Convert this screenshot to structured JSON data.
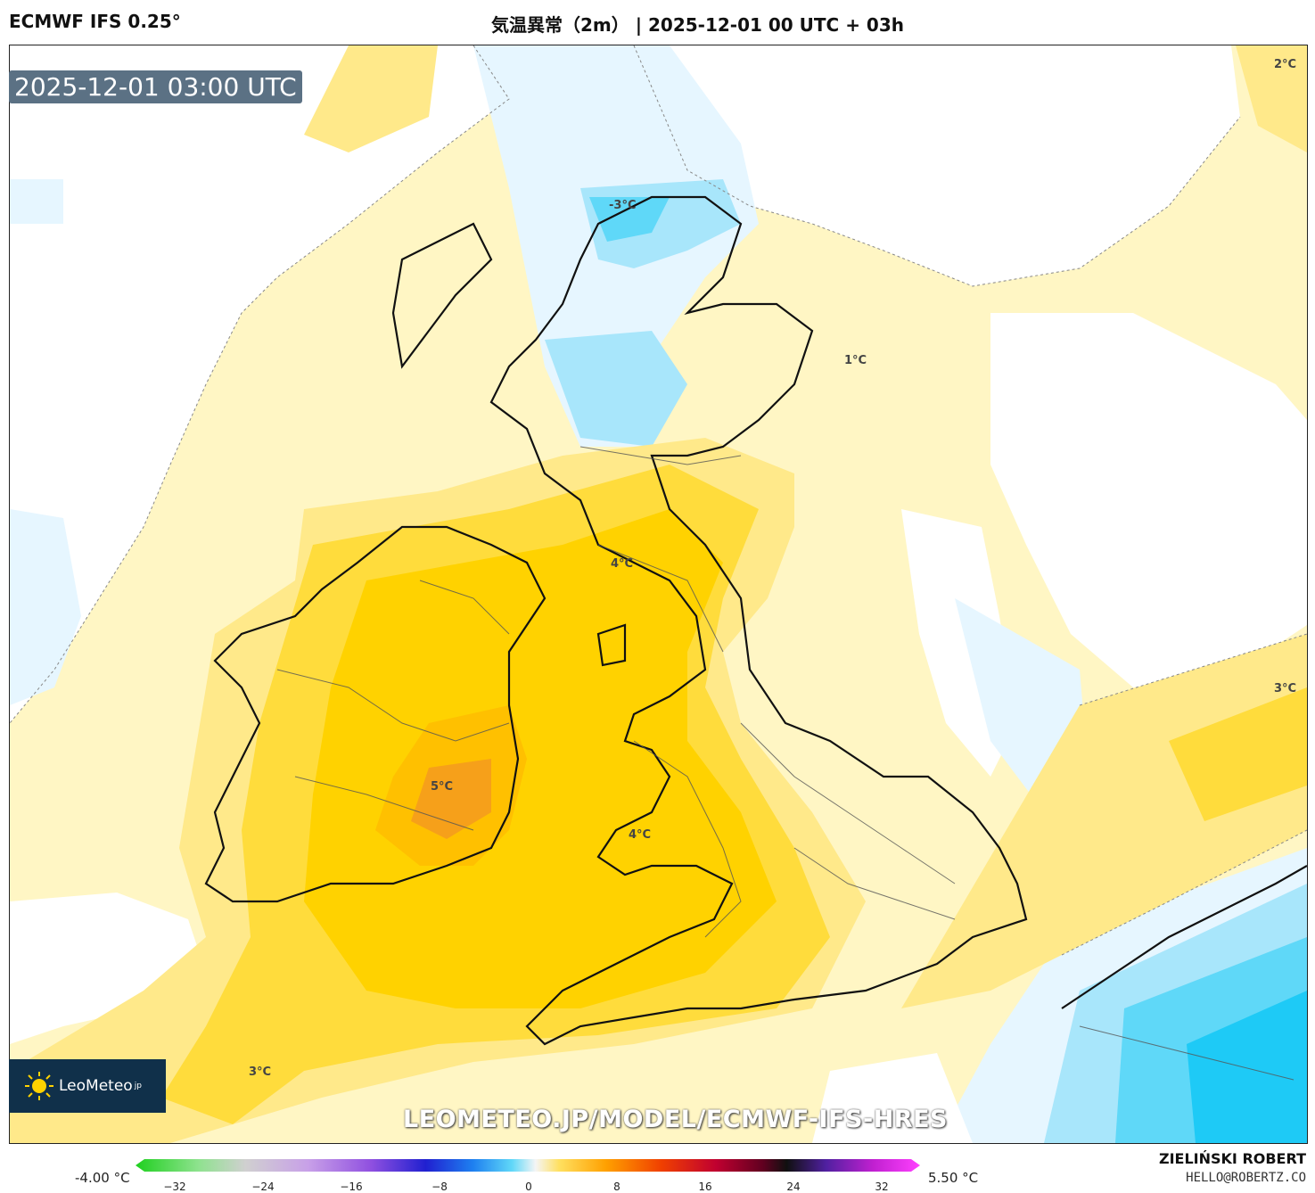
{
  "header": {
    "model": "ECMWF IFS 0.25°",
    "title": "気温異常（2m） | 2025-12-01 00 UTC + 03h"
  },
  "map": {
    "timestamp": "2025-12-01 03:00 UTC",
    "watermark": "LEOMETEO.JP/MODEL/ECMWF-IFS-HRES",
    "contour_labels": [
      "2°C",
      "-3°C",
      "1°C",
      "4°C",
      "3°C",
      "5°C",
      "4°C",
      "3°C"
    ],
    "colors": {
      "anom_0_1": "#fff6c4",
      "anom_1_2": "#ffe98a",
      "anom_2_3": "#ffdc3c",
      "anom_3_4": "#ffd200",
      "anom_4_5": "#ffc000",
      "anom_5_6": "#f6a01a",
      "cool_0": "#e6f6ff",
      "cool_1": "#a8e6fb",
      "cool_2": "#5fd8f8",
      "cool_3": "#1ecaf6"
    }
  },
  "logo": {
    "text": "LeoMeteo",
    "suffix": "jp"
  },
  "colorbar": {
    "min_label": "-4.00 °C",
    "max_label": "5.50 °C",
    "ticks": [
      "−32",
      "−24",
      "−16",
      "−8",
      "0",
      "8",
      "16",
      "24",
      "32"
    ]
  },
  "credits": {
    "author": "ZIELIŃSKI ROBERT",
    "email": "HELLO@ROBERTZ.CO"
  }
}
